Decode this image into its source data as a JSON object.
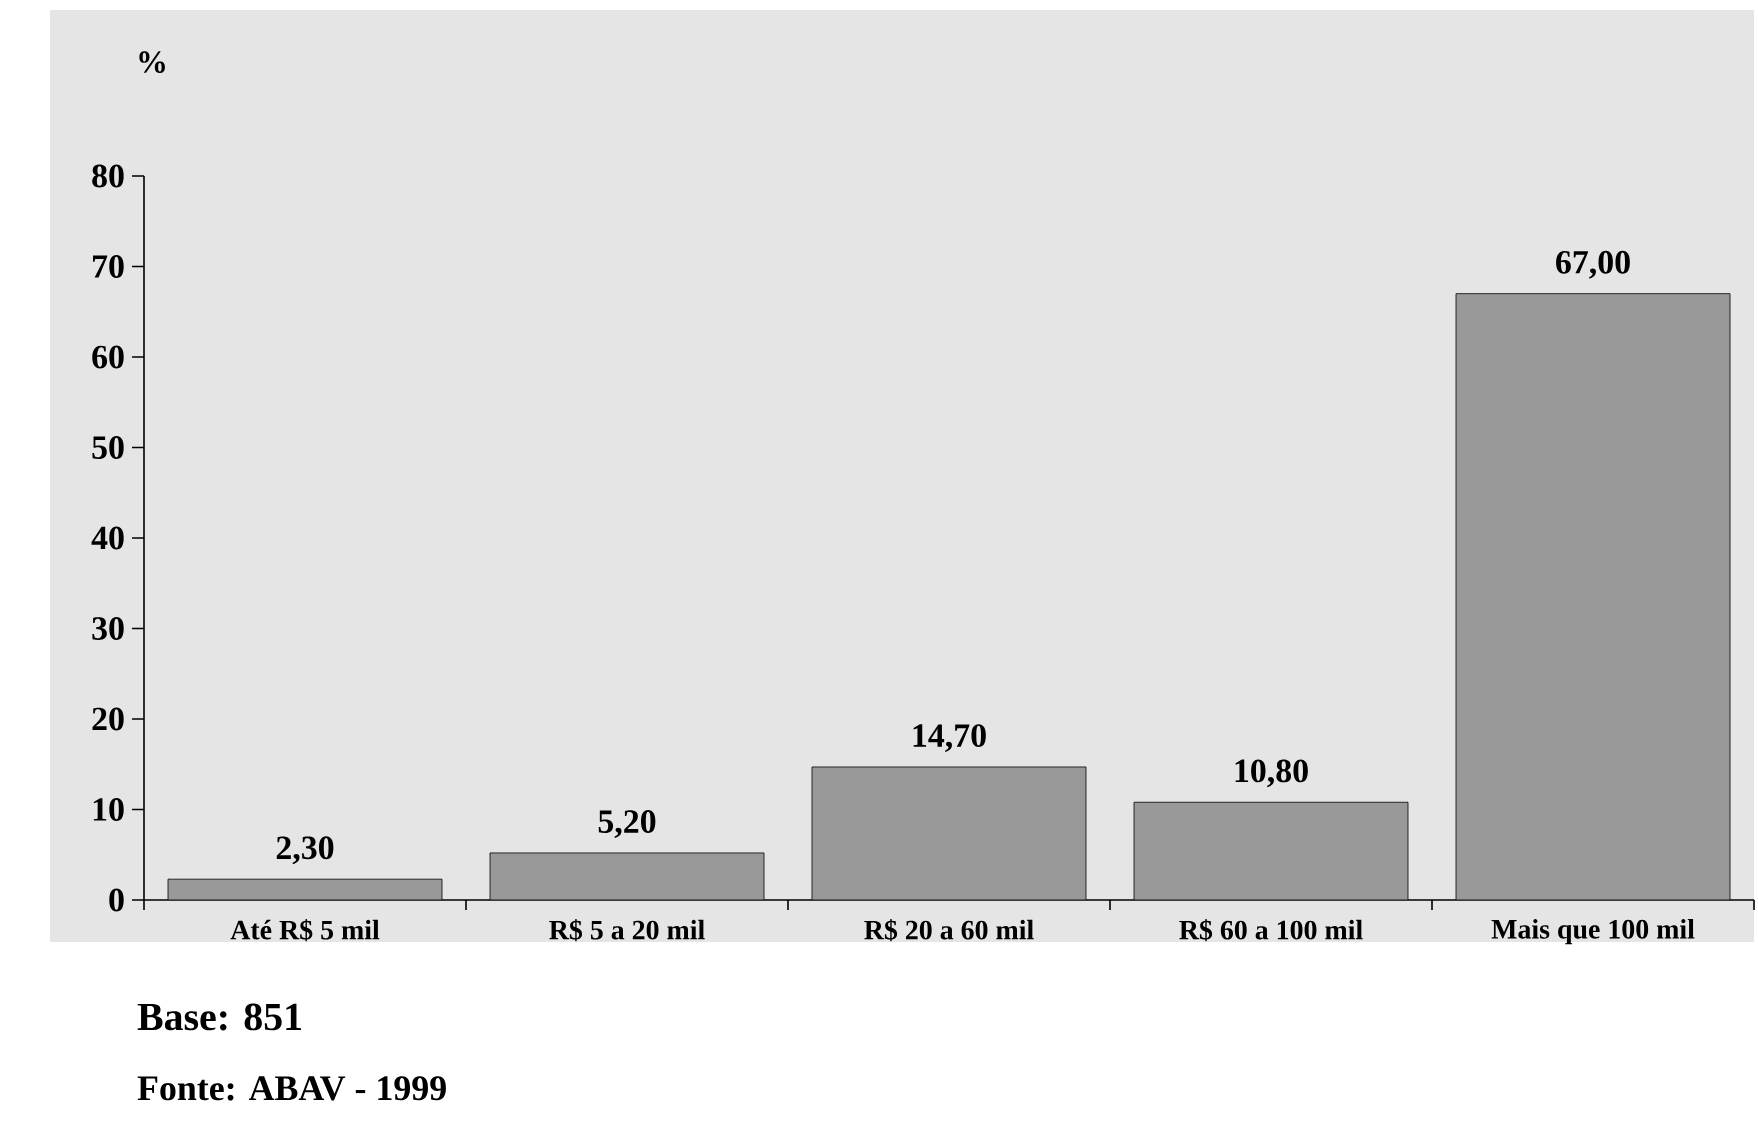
{
  "chart_data": {
    "type": "bar",
    "ylabel": "%",
    "categories": [
      "Até R$ 5 mil",
      "R$ 5 a 20 mil",
      "R$ 20 a 60 mil",
      "R$ 60 a 100 mil",
      "Mais que 100 mil"
    ],
    "values": [
      2.3,
      5.2,
      14.7,
      10.8,
      67.0
    ],
    "value_labels": [
      "2,30",
      "5,20",
      "14,70",
      "10,80",
      "67,00"
    ],
    "color": "#999999",
    "ylim": [
      0,
      80
    ],
    "yticks": [
      0,
      10,
      20,
      30,
      40,
      50,
      60,
      70,
      80
    ],
    "grid": false,
    "annotations": [
      "Base: 851",
      "Fonte: ABAV - 1999"
    ]
  }
}
